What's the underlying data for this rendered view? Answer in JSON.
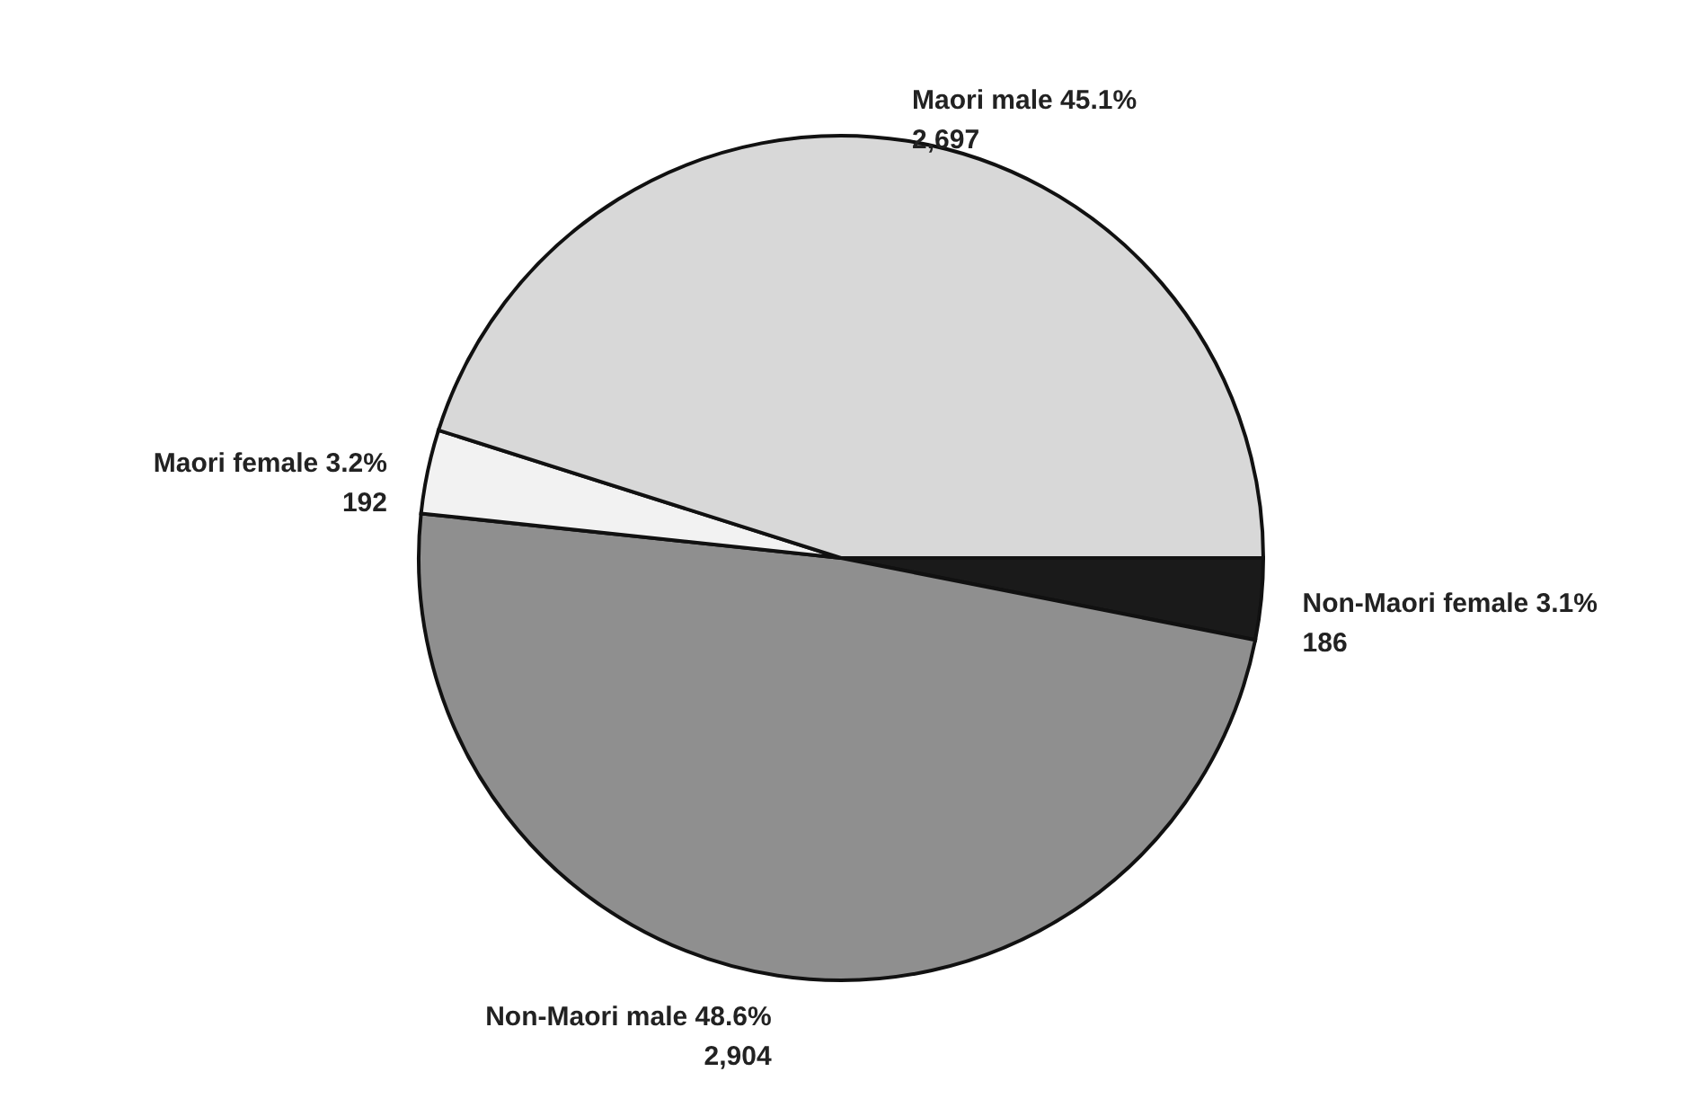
{
  "chart_data": {
    "type": "pie",
    "categories": [
      "Non-Maori female 3.1%",
      "Non-Maori male 48.6%",
      "Maori female 3.2%",
      "Maori male 45.1%"
    ],
    "values": [
      186,
      2904,
      192,
      2697
    ],
    "value_labels": [
      "186",
      "2,904",
      "192",
      "2,697"
    ],
    "colors": [
      "#1a1a1a",
      "#8f8f8f",
      "#f2f2f2",
      "#d8d8d8"
    ]
  }
}
